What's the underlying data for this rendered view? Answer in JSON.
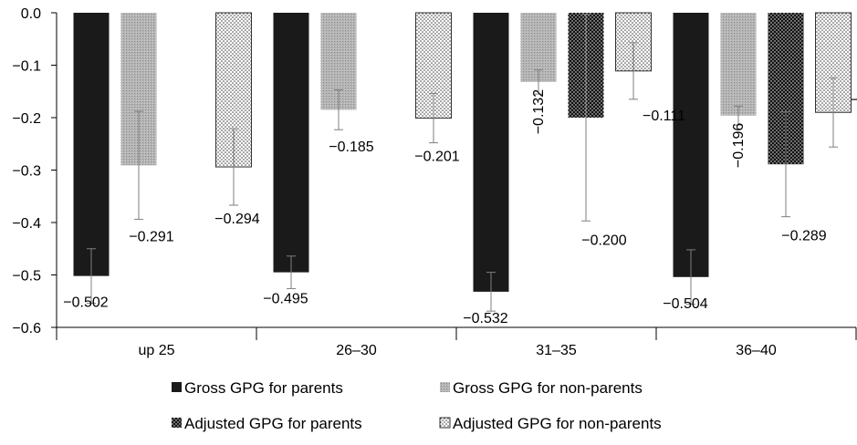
{
  "chart_data": {
    "type": "bar",
    "categories": [
      "up 25",
      "26–30",
      "31–35",
      "36–40"
    ],
    "series": [
      {
        "name": "Gross GPG for parents",
        "pattern": "solid-black",
        "values": [
          -0.502,
          -0.495,
          -0.532,
          -0.504
        ],
        "errors": [
          0.052,
          0.031,
          0.037,
          0.052
        ]
      },
      {
        "name": "Gross GPG for non-parents",
        "pattern": "light-gray-stipple",
        "values": [
          -0.291,
          -0.185,
          -0.132,
          -0.196
        ],
        "errors": [
          0.103,
          0.038,
          0.023,
          0.018
        ]
      },
      {
        "name": "Adjusted GPG for parents",
        "pattern": "black-dots",
        "values": [
          null,
          null,
          -0.2,
          -0.289
        ],
        "errors": [
          null,
          null,
          0.197,
          0.1
        ]
      },
      {
        "name": "Adjusted GPG for non-parents",
        "pattern": "white-dots",
        "values": [
          -0.294,
          -0.201,
          -0.111,
          -0.19
        ],
        "errors": [
          0.073,
          0.047,
          0.054,
          0.066
        ]
      }
    ],
    "data_labels": [
      [
        "−0.502",
        "−0.495",
        "−0.532",
        "−0.504"
      ],
      [
        "−0.291",
        "−0.185",
        "−0.132",
        "−0.196"
      ],
      [
        "",
        "",
        "−0.200",
        "−0.289"
      ],
      [
        "−0.294",
        "−0.201",
        "−0.111",
        "−0.190"
      ]
    ],
    "yticks": [
      "0.0",
      "−0.1",
      "−0.2",
      "−0.3",
      "−0.4",
      "−0.5",
      "−0.6"
    ],
    "ylim": [
      -0.6,
      0.0
    ],
    "title": "",
    "xlabel": "",
    "ylabel": "",
    "grid": false,
    "legend_position": "bottom",
    "colors": {
      "black": "#1a1a1a",
      "gray": "#a6a6a6",
      "axis": "#000000",
      "errorbar": "#7f7f7f"
    }
  }
}
